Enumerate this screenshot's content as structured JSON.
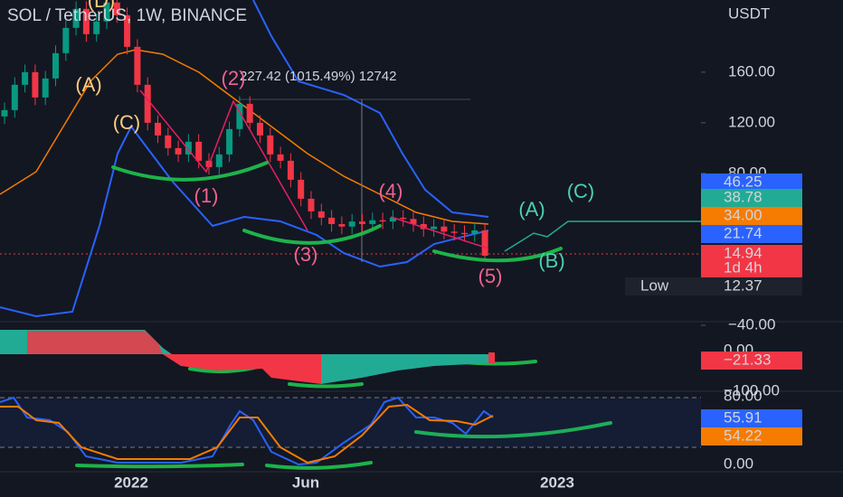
{
  "header": {
    "title": "SOL / TetherUS, 1W, BINANCE"
  },
  "price_axis": {
    "unit": "USDT",
    "ylim": [
      -40,
      217
    ],
    "ticks": [
      {
        "value": 160,
        "label": "160.00"
      },
      {
        "value": 120,
        "label": "120.00"
      },
      {
        "value": 80,
        "label": "80.00"
      },
      {
        "value": -40,
        "label": "−40.00"
      }
    ]
  },
  "candles": {
    "open": [
      125,
      130,
      150,
      160,
      140,
      155,
      175,
      195,
      210,
      190,
      200,
      215,
      205,
      180,
      150,
      120,
      110,
      100,
      95,
      105,
      90,
      85,
      95,
      115,
      135,
      120,
      110,
      95,
      90,
      75,
      60,
      50,
      45,
      40,
      38,
      42,
      40,
      43,
      42,
      45,
      44,
      40,
      36,
      38,
      34,
      33,
      32,
      35
    ],
    "high": [
      136,
      156,
      166,
      166,
      161,
      181,
      201,
      216,
      216,
      206,
      221,
      221,
      211,
      186,
      156,
      126,
      116,
      106,
      111,
      111,
      96,
      101,
      121,
      141,
      141,
      126,
      116,
      101,
      96,
      81,
      66,
      56,
      51,
      46,
      48,
      48,
      49,
      49,
      51,
      51,
      50,
      46,
      44,
      44,
      40,
      39,
      41,
      41
    ],
    "low": [
      119,
      124,
      144,
      134,
      134,
      149,
      169,
      189,
      184,
      184,
      194,
      199,
      174,
      144,
      114,
      104,
      94,
      89,
      89,
      84,
      79,
      79,
      89,
      109,
      114,
      104,
      89,
      84,
      69,
      54,
      44,
      39,
      34,
      32,
      32,
      34,
      34,
      36,
      36,
      38,
      34,
      30,
      30,
      28,
      27,
      26,
      26,
      12
    ],
    "close": [
      130,
      150,
      160,
      140,
      155,
      175,
      195,
      210,
      190,
      200,
      215,
      205,
      180,
      150,
      120,
      110,
      100,
      95,
      105,
      90,
      85,
      95,
      115,
      135,
      120,
      110,
      95,
      90,
      75,
      60,
      50,
      45,
      40,
      38,
      42,
      40,
      43,
      42,
      45,
      44,
      40,
      36,
      38,
      34,
      33,
      32,
      35,
      15
    ]
  },
  "price_tags": [
    {
      "value": "46.25",
      "color": "#2962ff"
    },
    {
      "value": "38.78",
      "color": "#22ab94"
    },
    {
      "value": "34.00",
      "color": "#f57c00"
    },
    {
      "value": "21.74",
      "color": "#2962ff"
    },
    {
      "value": "14.94",
      "color": "#f23645"
    },
    {
      "value": "1d 4h",
      "color": "#f23645"
    }
  ],
  "low_tag": {
    "label": "Low",
    "value": "12.37"
  },
  "measurement": "227.42 (1015.49%) 12742",
  "wave_labels": [
    "(D)",
    "(A)",
    "(C)",
    "(2)",
    "(1)",
    "(3)",
    "(4)",
    "(5)",
    "(A)",
    "(C)",
    "(B)"
  ],
  "oscillator_axis": [
    "0.00",
    "−100.00",
    "80.00",
    "0.00"
  ],
  "oscillator_tags": [
    {
      "value": "−21.33",
      "color": "#f23645"
    },
    {
      "value": "55.91",
      "color": "#2962ff"
    },
    {
      "value": "54.22",
      "color": "#f57c00"
    }
  ],
  "time_axis": [
    "2022",
    "Jun",
    "2023"
  ]
}
